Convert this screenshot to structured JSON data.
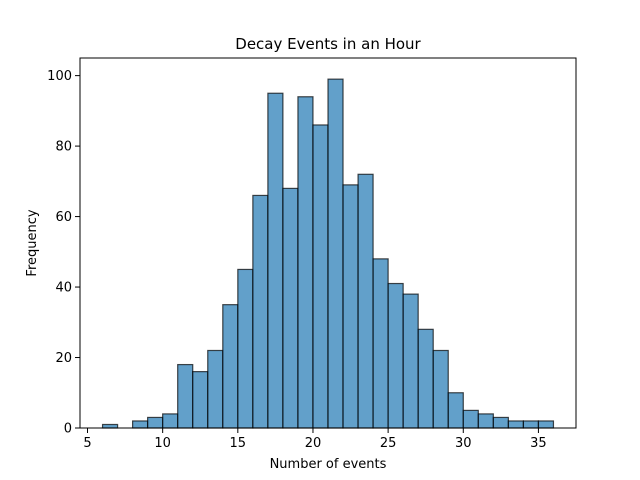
{
  "chart_data": {
    "type": "bar",
    "title": "Decay Events in an Hour",
    "xlabel": "Number of events",
    "ylabel": "Frequency",
    "xlim": [
      4.5,
      37.5
    ],
    "ylim": [
      0,
      105
    ],
    "xticks": [
      5,
      10,
      15,
      20,
      25,
      30,
      35
    ],
    "yticks": [
      0,
      20,
      40,
      60,
      80,
      100
    ],
    "grid": false,
    "bar_color": "#1f77b4",
    "bar_edge_color": "#000000",
    "bin_width": 1,
    "bins": [
      {
        "start": 6,
        "value": 1
      },
      {
        "start": 7,
        "value": 0
      },
      {
        "start": 8,
        "value": 2
      },
      {
        "start": 9,
        "value": 3
      },
      {
        "start": 10,
        "value": 4
      },
      {
        "start": 11,
        "value": 18
      },
      {
        "start": 12,
        "value": 16
      },
      {
        "start": 13,
        "value": 22
      },
      {
        "start": 14,
        "value": 35
      },
      {
        "start": 15,
        "value": 45
      },
      {
        "start": 16,
        "value": 66
      },
      {
        "start": 17,
        "value": 95
      },
      {
        "start": 18,
        "value": 68
      },
      {
        "start": 19,
        "value": 94
      },
      {
        "start": 20,
        "value": 86
      },
      {
        "start": 21,
        "value": 99
      },
      {
        "start": 22,
        "value": 69
      },
      {
        "start": 23,
        "value": 72
      },
      {
        "start": 24,
        "value": 48
      },
      {
        "start": 25,
        "value": 41
      },
      {
        "start": 26,
        "value": 38
      },
      {
        "start": 27,
        "value": 28
      },
      {
        "start": 28,
        "value": 22
      },
      {
        "start": 29,
        "value": 10
      },
      {
        "start": 30,
        "value": 5
      },
      {
        "start": 31,
        "value": 4
      },
      {
        "start": 32,
        "value": 3
      },
      {
        "start": 33,
        "value": 2
      },
      {
        "start": 34,
        "value": 2
      },
      {
        "start": 35,
        "value": 2
      }
    ]
  }
}
